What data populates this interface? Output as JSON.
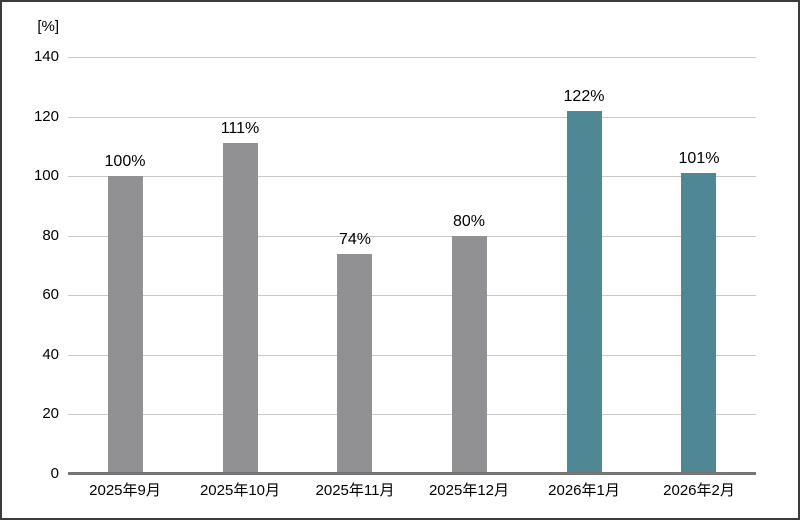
{
  "chart_data": {
    "type": "bar",
    "title": "",
    "unit_label": "[%]",
    "xlabel": "",
    "ylabel": "[%]",
    "categories": [
      "2025年9月",
      "2025年10月",
      "2025年11月",
      "2025年12月",
      "2026年1月",
      "2026年2月"
    ],
    "values": [
      100,
      111,
      74,
      80,
      122,
      101
    ],
    "value_labels": [
      "100%",
      "111%",
      "74%",
      "80%",
      "122%",
      "101%"
    ],
    "bar_colors": [
      "#919194",
      "#919194",
      "#919194",
      "#919194",
      "#4F8794",
      "#4F8794"
    ],
    "ylim": [
      0,
      140
    ],
    "yticks": [
      0,
      20,
      40,
      60,
      80,
      100,
      120,
      140
    ],
    "ytick_labels": [
      "0",
      "20",
      "40",
      "60",
      "80",
      "100",
      "120",
      "140"
    ],
    "grid": "horizontal",
    "legend": "none",
    "colors": {
      "default_bar": "#919194",
      "highlight_bar": "#4F8794",
      "gridline": "#c9c9c9",
      "axis_line": "#757575",
      "text": "#000000",
      "frame_border": "#3b3b3b",
      "background": "#ffffff"
    }
  }
}
